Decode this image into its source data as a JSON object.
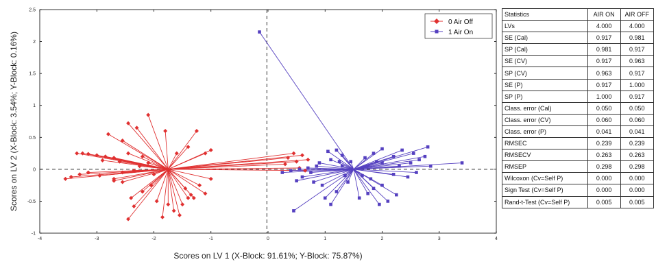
{
  "chart_data": {
    "type": "scatter",
    "xlabel": "Scores on LV 1 (X-Block: 91.61%; Y-Block: 75.87%)",
    "ylabel": "Scores on LV 2 (X-Block: 3.54%; Y-Block: 0.16%)",
    "xlim": [
      -4,
      4
    ],
    "ylim": [
      -1,
      2.5
    ],
    "xticks": [
      "-4",
      "-3",
      "-2",
      "-1",
      "0",
      "1",
      "2",
      "3",
      "4"
    ],
    "yticks": [
      "-1",
      "-0.5",
      "0",
      "0.5",
      "1",
      "1.5",
      "2",
      "2.5"
    ],
    "reference_lines": {
      "x": -0.02,
      "y": 0
    },
    "legend_position": "top-right",
    "series": [
      {
        "name": "0 Air Off",
        "color": "#e03030",
        "marker": "diamond",
        "centroid": [
          -1.75,
          0.0
        ],
        "points": [
          [
            -3.55,
            -0.15
          ],
          [
            -3.45,
            -0.12
          ],
          [
            -3.3,
            -0.08
          ],
          [
            -3.15,
            -0.05
          ],
          [
            -2.95,
            -0.1
          ],
          [
            -2.7,
            -0.18
          ],
          [
            -2.55,
            -0.05
          ],
          [
            -2.35,
            -0.02
          ],
          [
            -2.25,
            0.05
          ],
          [
            -2.1,
            0.1
          ],
          [
            -2.0,
            -0.08
          ],
          [
            -3.35,
            0.25
          ],
          [
            -3.25,
            0.25
          ],
          [
            -3.15,
            0.24
          ],
          [
            -3.0,
            0.22
          ],
          [
            -2.85,
            0.2
          ],
          [
            -2.7,
            0.18
          ],
          [
            -2.9,
            0.14
          ],
          [
            -2.6,
            0.12
          ],
          [
            -2.45,
            0.25
          ],
          [
            -2.2,
            0.2
          ],
          [
            -2.8,
            0.55
          ],
          [
            -2.55,
            0.45
          ],
          [
            -2.45,
            0.72
          ],
          [
            -2.3,
            0.65
          ],
          [
            -2.1,
            0.85
          ],
          [
            -1.8,
            0.6
          ],
          [
            -1.6,
            0.25
          ],
          [
            -1.4,
            0.35
          ],
          [
            -1.25,
            0.6
          ],
          [
            -1.1,
            0.25
          ],
          [
            -1.0,
            0.3
          ],
          [
            -2.7,
            -0.15
          ],
          [
            -2.55,
            -0.2
          ],
          [
            -2.4,
            -0.45
          ],
          [
            -2.35,
            -0.58
          ],
          [
            -2.2,
            -0.35
          ],
          [
            -2.05,
            -0.25
          ],
          [
            -1.95,
            -0.5
          ],
          [
            -1.85,
            -0.75
          ],
          [
            -1.75,
            -0.55
          ],
          [
            -1.65,
            -0.65
          ],
          [
            -1.55,
            -0.72
          ],
          [
            -1.5,
            -0.55
          ],
          [
            -1.45,
            -0.3
          ],
          [
            -1.4,
            -0.45
          ],
          [
            -1.3,
            -0.45
          ],
          [
            -1.2,
            -0.25
          ],
          [
            -1.1,
            -0.38
          ],
          [
            -1.0,
            -0.15
          ],
          [
            -2.45,
            -0.78
          ],
          [
            -1.35,
            -0.4
          ],
          [
            0.45,
            0.25
          ],
          [
            0.6,
            0.22
          ],
          [
            0.7,
            0.15
          ],
          [
            0.55,
            0.02
          ],
          [
            0.65,
            -0.02
          ],
          [
            0.3,
            0.08
          ],
          [
            0.5,
            0.12
          ],
          [
            0.35,
            0.18
          ]
        ]
      },
      {
        "name": "1 Air On",
        "color": "#5540c0",
        "marker": "square",
        "centroid": [
          1.5,
          0.0
        ],
        "points": [
          [
            -0.15,
            2.15
          ],
          [
            0.25,
            -0.05
          ],
          [
            0.4,
            -0.02
          ],
          [
            0.55,
            0.0
          ],
          [
            0.7,
            0.02
          ],
          [
            0.85,
            0.05
          ],
          [
            0.9,
            0.1
          ],
          [
            0.75,
            -0.05
          ],
          [
            0.5,
            -0.18
          ],
          [
            0.6,
            -0.12
          ],
          [
            0.8,
            -0.2
          ],
          [
            0.95,
            -0.25
          ],
          [
            0.45,
            -0.65
          ],
          [
            1.0,
            -0.45
          ],
          [
            1.1,
            -0.55
          ],
          [
            1.2,
            -0.35
          ],
          [
            1.05,
            0.28
          ],
          [
            1.2,
            0.3
          ],
          [
            1.3,
            0.22
          ],
          [
            1.1,
            0.15
          ],
          [
            1.25,
            0.12
          ],
          [
            1.6,
            -0.45
          ],
          [
            1.75,
            -0.38
          ],
          [
            1.85,
            -0.3
          ],
          [
            1.95,
            -0.55
          ],
          [
            2.1,
            -0.5
          ],
          [
            2.25,
            -0.4
          ],
          [
            2.0,
            -0.25
          ],
          [
            1.7,
            0.18
          ],
          [
            1.85,
            0.25
          ],
          [
            2.0,
            0.32
          ],
          [
            2.2,
            0.2
          ],
          [
            2.35,
            0.3
          ],
          [
            2.55,
            0.25
          ],
          [
            2.65,
            0.15
          ],
          [
            2.8,
            0.35
          ],
          [
            2.75,
            0.2
          ],
          [
            2.5,
            0.1
          ],
          [
            2.3,
            0.05
          ],
          [
            2.6,
            -0.05
          ],
          [
            2.45,
            -0.12
          ],
          [
            2.2,
            -0.08
          ],
          [
            2.85,
            0.05
          ],
          [
            3.4,
            0.1
          ],
          [
            2.0,
            0.1
          ],
          [
            1.9,
            0.12
          ],
          [
            1.75,
            0.05
          ],
          [
            1.65,
            -0.1
          ],
          [
            1.8,
            -0.15
          ],
          [
            1.4,
            -0.2
          ],
          [
            1.35,
            -0.1
          ],
          [
            1.3,
            0.05
          ],
          [
            1.45,
            0.12
          ]
        ]
      }
    ]
  },
  "stats_table": {
    "headers": [
      "Statistics",
      "AIR ON",
      "AIR OFF"
    ],
    "rows": [
      [
        "LVs",
        "4.000",
        "4.000"
      ],
      [
        "SE (Cal)",
        "0.917",
        "0.981"
      ],
      [
        "SP (Cal)",
        "0.981",
        "0.917"
      ],
      [
        "SE (CV)",
        "0.917",
        "0.963"
      ],
      [
        "SP (CV)",
        "0.963",
        "0.917"
      ],
      [
        "SE (P)",
        "0.917",
        "1.000"
      ],
      [
        "SP (P)",
        "1.000",
        "0.917"
      ],
      [
        "Class. error (Cal)",
        "0.050",
        "0.050"
      ],
      [
        "Class. error (CV)",
        "0.060",
        "0.060"
      ],
      [
        "Class. error (P)",
        "0.041",
        "0.041"
      ],
      [
        "RMSEC",
        "0.239",
        "0.239"
      ],
      [
        "RMSECV",
        "0.263",
        "0.263"
      ],
      [
        "RMSEP",
        "0.298",
        "0.298"
      ],
      [
        "Wilcoxon (Cv=Self P)",
        "0.000",
        "0.000"
      ],
      [
        "Sign Test (Cv=Self P)",
        "0.000",
        "0.000"
      ],
      [
        "Rand-t-Test (Cv=Self P)",
        "0.005",
        "0.005"
      ]
    ]
  }
}
